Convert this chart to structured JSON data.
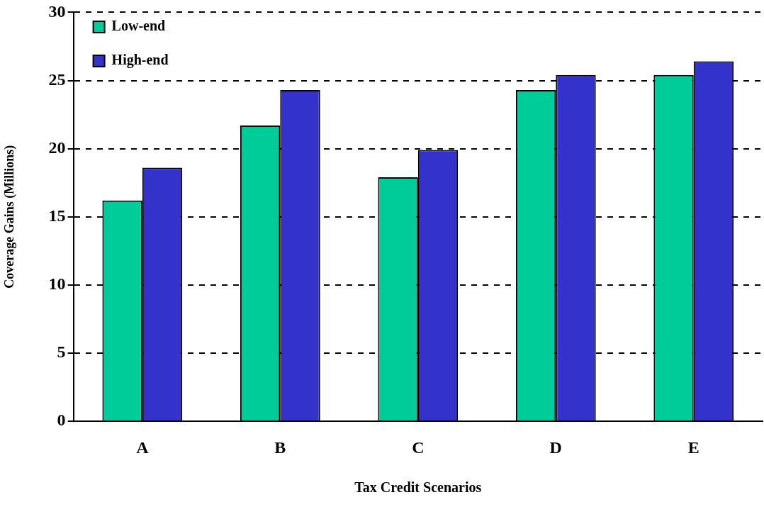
{
  "chart_data": {
    "type": "bar",
    "xlabel": "Tax Credit Scenarios",
    "ylabel": "Coverage Gains (Millions)",
    "categories": [
      "A",
      "B",
      "C",
      "D",
      "E"
    ],
    "series": [
      {
        "name": "Low-end",
        "color": "#00cc99",
        "values": [
          16.2,
          21.7,
          17.9,
          24.3,
          25.4
        ]
      },
      {
        "name": "High-end",
        "color": "#3333cc",
        "values": [
          18.6,
          24.3,
          19.9,
          25.4,
          26.4
        ]
      }
    ],
    "ylim": [
      0,
      30
    ],
    "yticks": [
      0,
      5,
      10,
      15,
      20,
      25,
      30
    ],
    "grid": "y",
    "legend": "top left"
  }
}
